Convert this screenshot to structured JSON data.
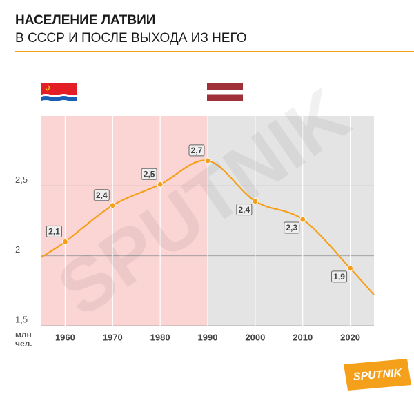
{
  "chart_data": {
    "type": "line",
    "title": "НАСЕЛЕНИЕ ЛАТВИИ",
    "subtitle": "В СССР И ПОСЛЕ ВЫХОДА ИЗ НЕГО",
    "y_label_lines": [
      "млн",
      "чел."
    ],
    "logo": "SPUTNIK",
    "x": [
      1955,
      1960,
      1970,
      1980,
      1990,
      2000,
      2010,
      2020,
      2025
    ],
    "values": [
      1.99,
      2.1,
      2.36,
      2.51,
      2.68,
      2.39,
      2.26,
      1.91,
      1.72
    ],
    "value_labels": [
      null,
      "2,1",
      "2,4",
      "2,5",
      "2,7",
      "2,4",
      "2,3",
      "1,9",
      null
    ],
    "color": "#f5a01a",
    "xlim": [
      1955,
      2025
    ],
    "ylim": [
      1.5,
      3.0
    ],
    "xticks": [
      1960,
      1970,
      1980,
      1990,
      2000,
      2010,
      2020
    ],
    "yticks": [
      {
        "value": 1.5,
        "label": "1,5"
      },
      2,
      {
        "value": 2.5,
        "label": "2,5"
      }
    ],
    "regions": [
      {
        "from": 1955,
        "to": 1990,
        "color": "#fbd4d4"
      },
      {
        "from": 1990,
        "to": 2025,
        "color": "#e4e4e4"
      }
    ],
    "grid": true
  }
}
